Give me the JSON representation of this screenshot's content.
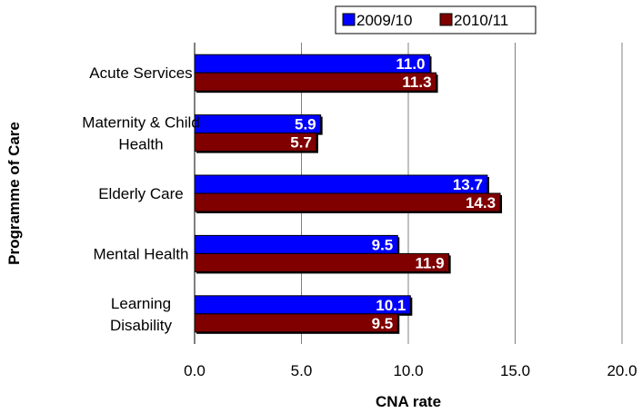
{
  "chart_data": {
    "type": "bar",
    "orientation": "horizontal",
    "title": "",
    "xlabel": "CNA rate",
    "ylabel": "Programme of Care",
    "xlim": [
      0,
      20
    ],
    "x_ticks": [
      "0.0",
      "5.0",
      "10.0",
      "15.0",
      "20.0"
    ],
    "grid": "vertical",
    "legend_position": "top",
    "categories": [
      [
        "Acute Services"
      ],
      [
        "Maternity & Child",
        "Health"
      ],
      [
        "Elderly Care"
      ],
      [
        "Mental Health"
      ],
      [
        "Learning",
        "Disability"
      ]
    ],
    "series": [
      {
        "name": "2009/10",
        "color": "#0000ff",
        "values": [
          11.0,
          5.9,
          13.7,
          9.5,
          10.1
        ],
        "labels": [
          "11.0",
          "5.9",
          "13.7",
          "9.5",
          "10.1"
        ]
      },
      {
        "name": "2010/11",
        "color": "#800000",
        "values": [
          11.3,
          5.7,
          14.3,
          11.9,
          9.5
        ],
        "labels": [
          "11.3",
          "5.7",
          "14.3",
          "11.9",
          "9.5"
        ]
      }
    ]
  }
}
